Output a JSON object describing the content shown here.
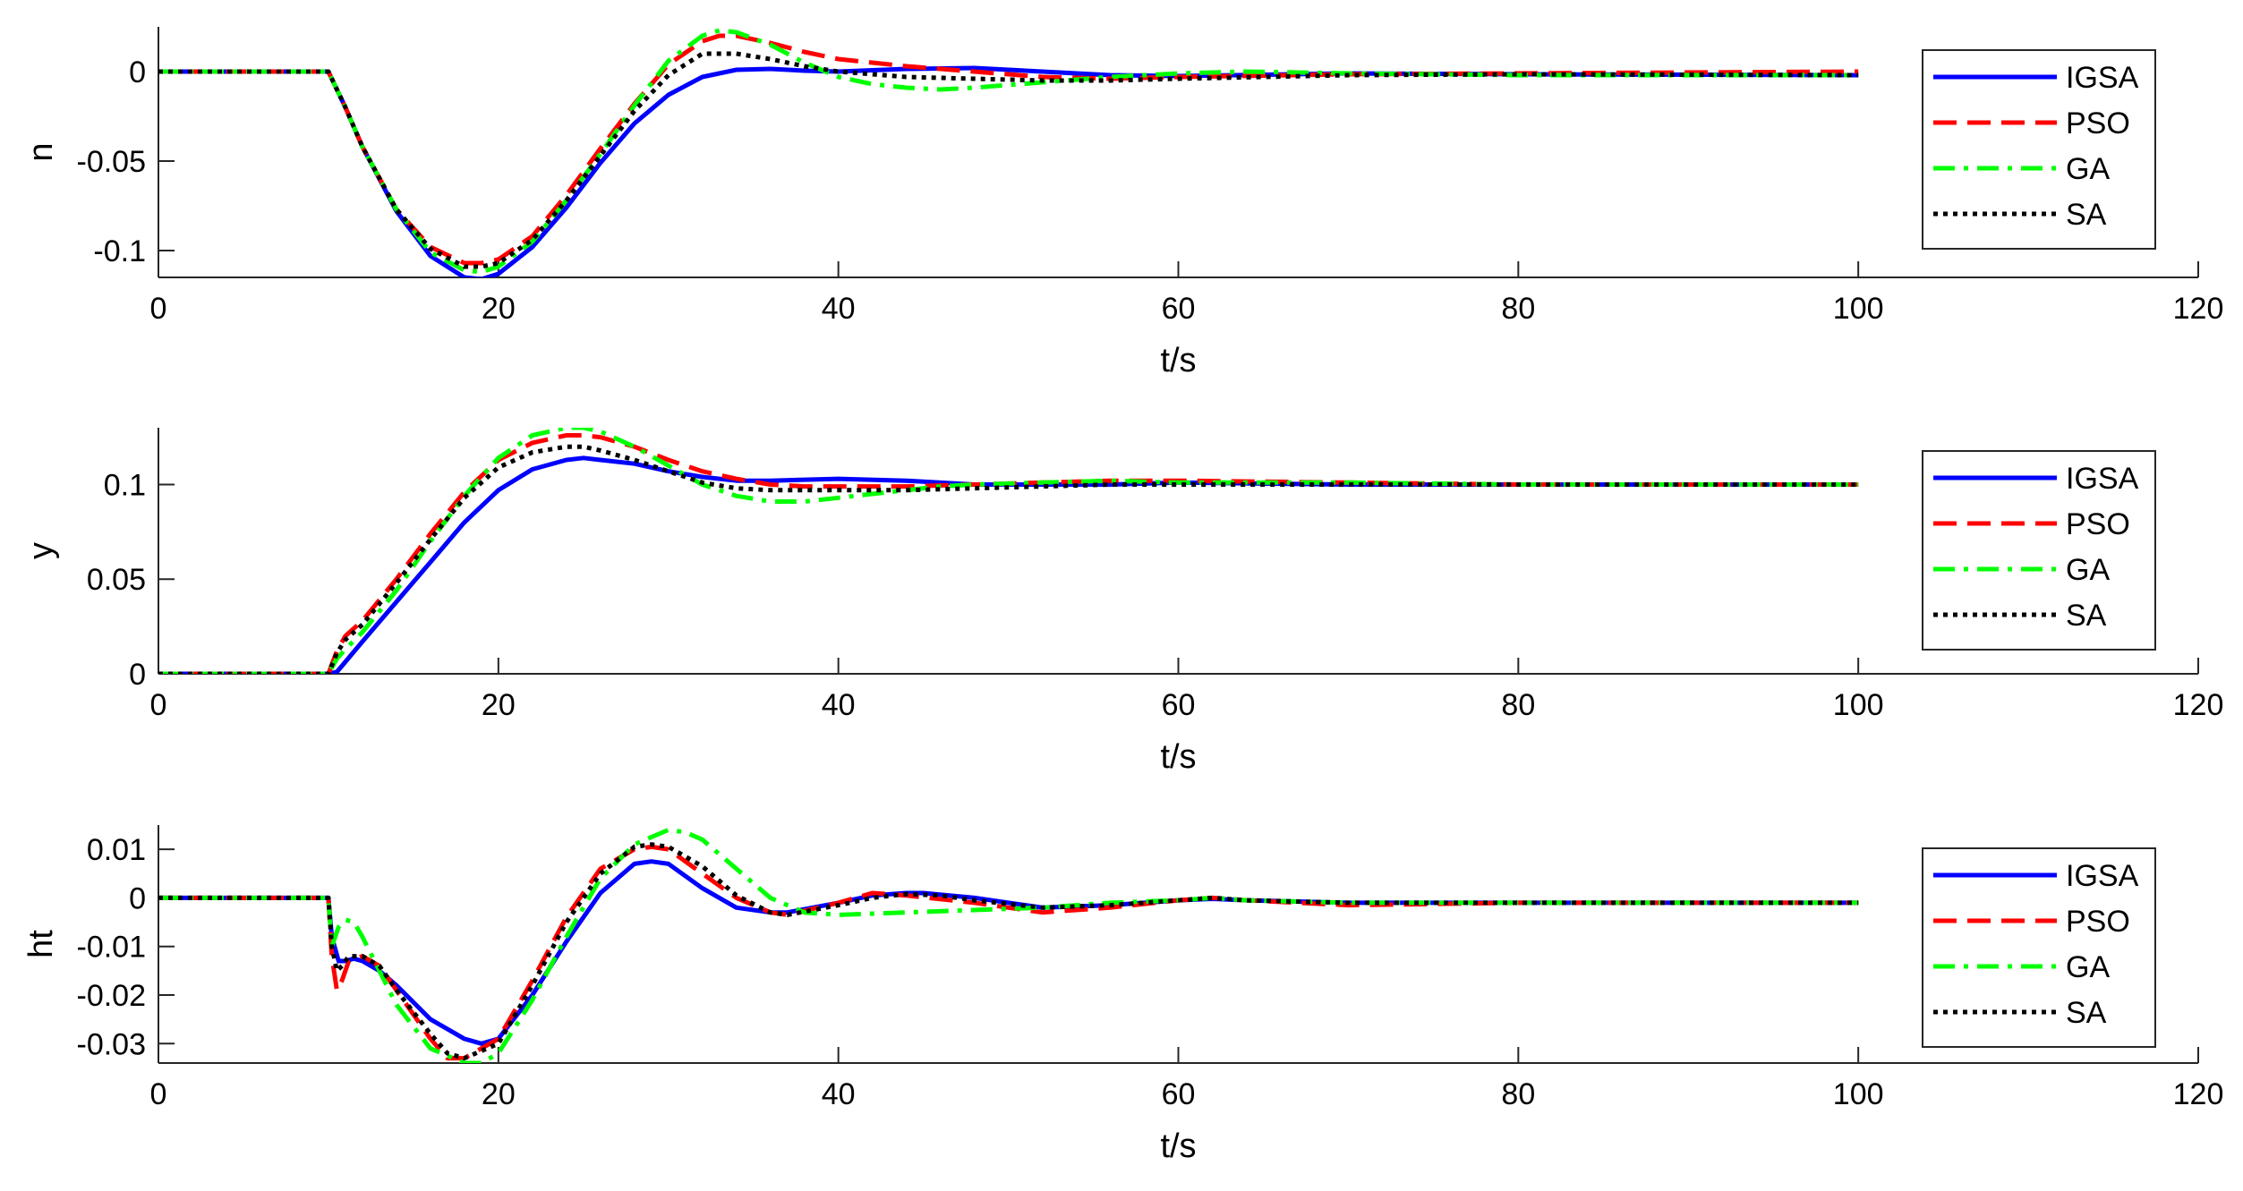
{
  "chart_data": [
    {
      "type": "line",
      "ylabel": "n",
      "xlabel": "t/s",
      "xlim": [
        0,
        120
      ],
      "ylim": [
        -0.115,
        0.025
      ],
      "xticks": [
        0,
        20,
        40,
        60,
        80,
        100,
        120
      ],
      "yticks": [
        0,
        -0.05,
        -0.1
      ],
      "ytick_labels": [
        "0",
        "-0.05",
        "-0.1"
      ],
      "legend_position": "top-right",
      "grid": false,
      "series": [
        {
          "name": "IGSA",
          "color": "#0000ff",
          "style": "solid",
          "x": [
            0,
            10,
            11,
            12,
            14,
            16,
            18,
            19,
            20,
            22,
            24,
            26,
            28,
            30,
            32,
            34,
            36,
            38,
            40,
            44,
            48,
            52,
            56,
            60,
            70,
            80,
            100
          ],
          "y": [
            0,
            0,
            -0.02,
            -0.042,
            -0.078,
            -0.103,
            -0.115,
            -0.116,
            -0.113,
            -0.098,
            -0.076,
            -0.051,
            -0.029,
            -0.013,
            -0.003,
            0.001,
            0.0015,
            0.0005,
            0,
            0.0015,
            0.002,
            0,
            -0.002,
            -0.0025,
            -0.001,
            -0.0015,
            -0.002
          ]
        },
        {
          "name": "PSO",
          "color": "#ff0000",
          "style": "dashed",
          "x": [
            0,
            10,
            11,
            12,
            14,
            16,
            18,
            19,
            20,
            22,
            24,
            26,
            28,
            30,
            32,
            33,
            34,
            36,
            38,
            40,
            44,
            48,
            52,
            56,
            60,
            70,
            80,
            100
          ],
          "y": [
            0,
            0,
            -0.02,
            -0.042,
            -0.077,
            -0.098,
            -0.107,
            -0.107,
            -0.105,
            -0.092,
            -0.069,
            -0.043,
            -0.018,
            0.004,
            0.017,
            0.02,
            0.02,
            0.016,
            0.011,
            0.007,
            0.003,
            0,
            -0.003,
            -0.004,
            -0.003,
            -0.0015,
            -0.001,
            0
          ]
        },
        {
          "name": "GA",
          "color": "#00ff00",
          "style": "dashdot",
          "x": [
            0,
            10,
            11,
            12,
            14,
            16,
            18,
            19,
            20,
            22,
            24,
            26,
            28,
            30,
            32,
            33,
            34,
            36,
            38,
            40,
            42,
            44,
            46,
            48,
            52,
            56,
            60,
            64,
            70,
            80,
            100
          ],
          "y": [
            0,
            0,
            -0.02,
            -0.042,
            -0.077,
            -0.101,
            -0.111,
            -0.112,
            -0.109,
            -0.095,
            -0.072,
            -0.046,
            -0.019,
            0.006,
            0.02,
            0.023,
            0.022,
            0.015,
            0.005,
            -0.003,
            -0.007,
            -0.009,
            -0.01,
            -0.009,
            -0.006,
            -0.003,
            -0.001,
            0,
            -0.001,
            -0.002,
            -0.002
          ]
        },
        {
          "name": "SA",
          "color": "#000000",
          "style": "dotted",
          "x": [
            0,
            10,
            11,
            12,
            14,
            16,
            18,
            19,
            20,
            22,
            24,
            26,
            28,
            30,
            32,
            34,
            36,
            38,
            40,
            44,
            48,
            52,
            56,
            60,
            70,
            80,
            100
          ],
          "y": [
            0,
            0,
            -0.02,
            -0.042,
            -0.077,
            -0.099,
            -0.109,
            -0.109,
            -0.107,
            -0.094,
            -0.072,
            -0.047,
            -0.022,
            -0.002,
            0.01,
            0.01,
            0.007,
            0.003,
            0,
            -0.003,
            -0.004,
            -0.005,
            -0.005,
            -0.004,
            -0.002,
            -0.0015,
            -0.002
          ]
        }
      ]
    },
    {
      "type": "line",
      "ylabel": "y",
      "xlabel": "t/s",
      "xlim": [
        0,
        120
      ],
      "ylim": [
        0,
        0.13
      ],
      "xticks": [
        0,
        20,
        40,
        60,
        80,
        100,
        120
      ],
      "yticks": [
        0,
        0.05,
        0.1
      ],
      "ytick_labels": [
        "0",
        "0.05",
        "0.1"
      ],
      "legend_position": "top-right",
      "grid": false,
      "series": [
        {
          "name": "IGSA",
          "color": "#0000ff",
          "style": "solid",
          "x": [
            0,
            10,
            10.5,
            12,
            14,
            16,
            18,
            20,
            22,
            24,
            25,
            26,
            28,
            30,
            32,
            34,
            36,
            40,
            44,
            48,
            52,
            56,
            60,
            70,
            80,
            100
          ],
          "y": [
            0,
            0,
            0.001,
            0.017,
            0.038,
            0.059,
            0.08,
            0.097,
            0.108,
            0.113,
            0.114,
            0.113,
            0.111,
            0.107,
            0.104,
            0.102,
            0.102,
            0.103,
            0.102,
            0.1,
            0.1,
            0.1,
            0.101,
            0.1,
            0.1,
            0.1
          ]
        },
        {
          "name": "PSO",
          "color": "#ff0000",
          "style": "dashed",
          "x": [
            0,
            10,
            10.5,
            11,
            12,
            14,
            16,
            18,
            20,
            22,
            24,
            25,
            26,
            28,
            30,
            32,
            34,
            36,
            38,
            40,
            44,
            48,
            52,
            56,
            60,
            70,
            80,
            100
          ],
          "y": [
            0,
            0,
            0.012,
            0.02,
            0.028,
            0.05,
            0.074,
            0.096,
            0.113,
            0.122,
            0.126,
            0.126,
            0.125,
            0.12,
            0.113,
            0.107,
            0.103,
            0.1,
            0.099,
            0.099,
            0.099,
            0.1,
            0.101,
            0.102,
            0.102,
            0.101,
            0.1,
            0.1
          ]
        },
        {
          "name": "GA",
          "color": "#00ff00",
          "style": "dashdot",
          "x": [
            0,
            10,
            10.5,
            11,
            12,
            14,
            16,
            18,
            20,
            22,
            24,
            25,
            26,
            28,
            30,
            32,
            34,
            36,
            38,
            40,
            42,
            44,
            46,
            48,
            52,
            56,
            60,
            70,
            80,
            100
          ],
          "y": [
            0,
            0,
            0.008,
            0.013,
            0.022,
            0.044,
            0.07,
            0.094,
            0.114,
            0.126,
            0.13,
            0.13,
            0.128,
            0.12,
            0.11,
            0.1,
            0.094,
            0.091,
            0.091,
            0.093,
            0.095,
            0.097,
            0.099,
            0.1,
            0.101,
            0.102,
            0.101,
            0.101,
            0.1,
            0.1
          ]
        },
        {
          "name": "SA",
          "color": "#000000",
          "style": "dotted",
          "x": [
            0,
            10,
            10.5,
            11,
            12,
            14,
            16,
            18,
            20,
            22,
            24,
            25,
            26,
            28,
            30,
            32,
            34,
            36,
            38,
            40,
            44,
            48,
            52,
            56,
            60,
            70,
            80,
            100
          ],
          "y": [
            0,
            0,
            0.011,
            0.018,
            0.026,
            0.048,
            0.071,
            0.093,
            0.109,
            0.117,
            0.12,
            0.12,
            0.118,
            0.113,
            0.107,
            0.101,
            0.098,
            0.097,
            0.097,
            0.097,
            0.097,
            0.098,
            0.099,
            0.1,
            0.1,
            0.1,
            0.1,
            0.1
          ]
        }
      ]
    },
    {
      "type": "line",
      "ylabel": "ht",
      "xlabel": "t/s",
      "xlim": [
        0,
        120
      ],
      "ylim": [
        -0.034,
        0.015
      ],
      "xticks": [
        0,
        20,
        40,
        60,
        80,
        100,
        120
      ],
      "yticks": [
        0.01,
        0,
        -0.01,
        -0.02,
        -0.03
      ],
      "ytick_labels": [
        "0.01",
        "0",
        "-0.01",
        "-0.02",
        "-0.03"
      ],
      "legend_position": "top-right",
      "grid": false,
      "series": [
        {
          "name": "IGSA",
          "color": "#0000ff",
          "style": "solid",
          "x": [
            0,
            10,
            10.2,
            10.6,
            11,
            11.5,
            12,
            13,
            14,
            16,
            18,
            19,
            20,
            22,
            24,
            26,
            28,
            29,
            30,
            32,
            34,
            36,
            37,
            40,
            42,
            44,
            45,
            48,
            52,
            56,
            60,
            62,
            64,
            70,
            80,
            100
          ],
          "y": [
            0,
            0,
            -0.008,
            -0.013,
            -0.013,
            -0.0125,
            -0.013,
            -0.015,
            -0.018,
            -0.025,
            -0.029,
            -0.03,
            -0.029,
            -0.02,
            -0.009,
            0.001,
            0.007,
            0.0075,
            0.007,
            0.002,
            -0.002,
            -0.003,
            -0.003,
            -0.001,
            0.0005,
            0.001,
            0.001,
            0,
            -0.002,
            -0.0015,
            -0.0005,
            -0.0002,
            -0.0005,
            -0.001,
            -0.001,
            -0.001
          ]
        },
        {
          "name": "PSO",
          "color": "#ff0000",
          "style": "dashed",
          "x": [
            0,
            10,
            10.2,
            10.5,
            10.8,
            11.2,
            12,
            13,
            14,
            16,
            17,
            18,
            20,
            22,
            24,
            26,
            28,
            29,
            30,
            32,
            34,
            36,
            37,
            40,
            42,
            44,
            48,
            52,
            56,
            60,
            62,
            64,
            70,
            80,
            100
          ],
          "y": [
            0,
            0,
            -0.012,
            -0.019,
            -0.017,
            -0.013,
            -0.012,
            -0.014,
            -0.019,
            -0.029,
            -0.033,
            -0.033,
            -0.029,
            -0.017,
            -0.004,
            0.006,
            0.01,
            0.0105,
            0.01,
            0.005,
            0,
            -0.003,
            -0.0035,
            -0.001,
            0.001,
            0.0005,
            -0.001,
            -0.003,
            -0.002,
            -0.0005,
            0,
            -0.0005,
            -0.0015,
            -0.001,
            -0.001
          ]
        },
        {
          "name": "GA",
          "color": "#00ff00",
          "style": "dashdot",
          "x": [
            0,
            10,
            10.2,
            10.6,
            11,
            11.5,
            12,
            13,
            14,
            16,
            18,
            19,
            20,
            22,
            24,
            26,
            28,
            30,
            31,
            32,
            34,
            36,
            38,
            40,
            44,
            48,
            52,
            56,
            60,
            62,
            64,
            70,
            80,
            100
          ],
          "y": [
            0,
            0,
            -0.01,
            -0.006,
            -0.0045,
            -0.005,
            -0.008,
            -0.015,
            -0.022,
            -0.031,
            -0.034,
            -0.034,
            -0.032,
            -0.021,
            -0.008,
            0.004,
            0.011,
            0.014,
            0.0135,
            0.012,
            0.006,
            0,
            -0.003,
            -0.0035,
            -0.003,
            -0.0025,
            -0.002,
            -0.001,
            -0.0005,
            0,
            -0.0005,
            -0.001,
            -0.001,
            -0.001
          ]
        },
        {
          "name": "SA",
          "color": "#000000",
          "style": "dotted",
          "x": [
            0,
            10,
            10.2,
            10.5,
            10.8,
            11.2,
            12,
            13,
            14,
            16,
            17,
            18,
            20,
            22,
            24,
            26,
            28,
            29,
            30,
            32,
            34,
            36,
            37,
            40,
            42,
            44,
            46,
            48,
            52,
            56,
            60,
            62,
            64,
            70,
            80,
            100
          ],
          "y": [
            0,
            0,
            -0.01,
            -0.015,
            -0.014,
            -0.012,
            -0.012,
            -0.014,
            -0.019,
            -0.028,
            -0.032,
            -0.033,
            -0.03,
            -0.018,
            -0.005,
            0.005,
            0.0105,
            0.011,
            0.0105,
            0.0065,
            0.0005,
            -0.003,
            -0.0035,
            -0.0015,
            0,
            0.0008,
            0.0005,
            -0.0005,
            -0.002,
            -0.0015,
            -0.0005,
            0,
            -0.0005,
            -0.001,
            -0.001,
            -0.001
          ]
        }
      ]
    }
  ]
}
